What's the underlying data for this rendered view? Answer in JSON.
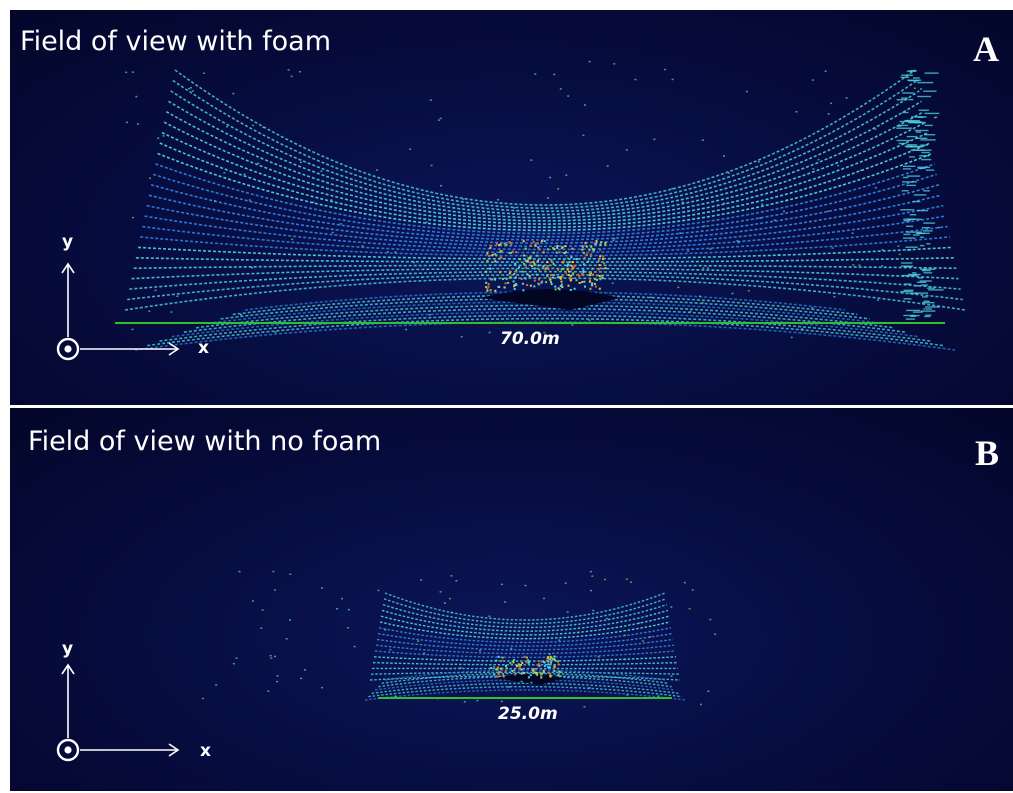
{
  "panels": [
    {
      "title": "Field of view with foam",
      "letter": "A",
      "scale_label": "70.0m",
      "axis_x": "x",
      "axis_y": "y"
    },
    {
      "title": "Field of view with no foam",
      "letter": "B",
      "scale_label": "25.0m",
      "axis_x": "x",
      "axis_y": "y"
    }
  ],
  "colors": {
    "background": "#060c3e",
    "scan_cyan": "#4fd8e8",
    "scan_blue": "#2e7de0",
    "scan_green": "#7fd24a",
    "scan_yellow": "#e8c83a",
    "scale_bar": "#2fbf2f"
  },
  "icons": [
    "axis-arrows-icon",
    "z-out-of-plane-icon"
  ]
}
